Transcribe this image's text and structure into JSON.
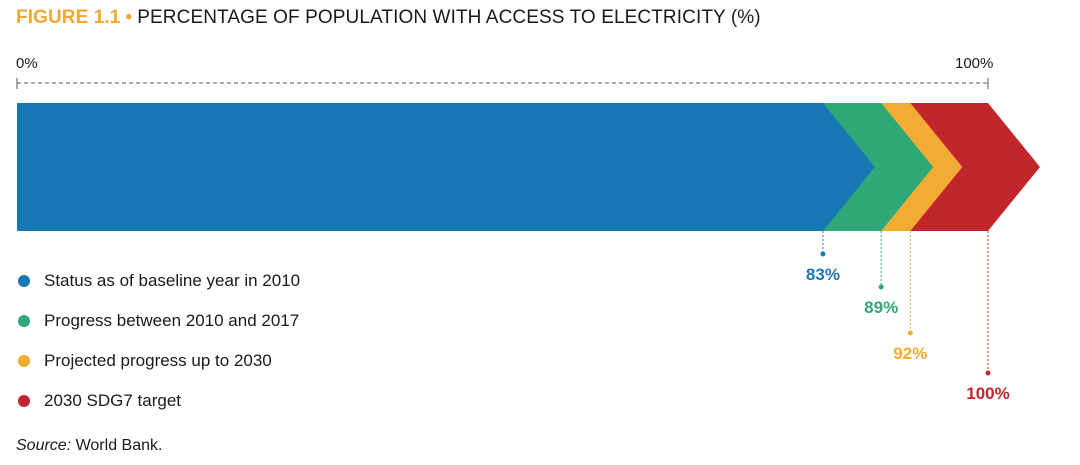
{
  "figure": {
    "label": "FIGURE 1.1",
    "bullet": "•",
    "title": "PERCENTAGE OF POPULATION WITH ACCESS TO ELECTRICITY (%)"
  },
  "scale": {
    "start_label": "0%",
    "end_label": "100%"
  },
  "chart_data": {
    "type": "bar",
    "orientation": "horizontal",
    "subtype": "stacked-chevron",
    "title": "PERCENTAGE OF POPULATION WITH ACCESS TO ELECTRICITY (%)",
    "xlim": [
      0,
      100
    ],
    "series": [
      {
        "name": "Status as of baseline year in 2010",
        "value": 83,
        "label": "83%",
        "color": "#1877b5"
      },
      {
        "name": "Progress between 2010 and 2017",
        "value": 89,
        "label": "89%",
        "color": "#2fa878"
      },
      {
        "name": "Projected progress up to 2030",
        "value": 92,
        "label": "92%",
        "color": "#f3ac33"
      },
      {
        "name": "2030 SDG7 target",
        "value": 100,
        "label": "100%",
        "color": "#c1262c"
      }
    ],
    "legend_position": "bottom-left",
    "grid": false
  },
  "source": {
    "label": "Source:",
    "text": "World Bank."
  }
}
